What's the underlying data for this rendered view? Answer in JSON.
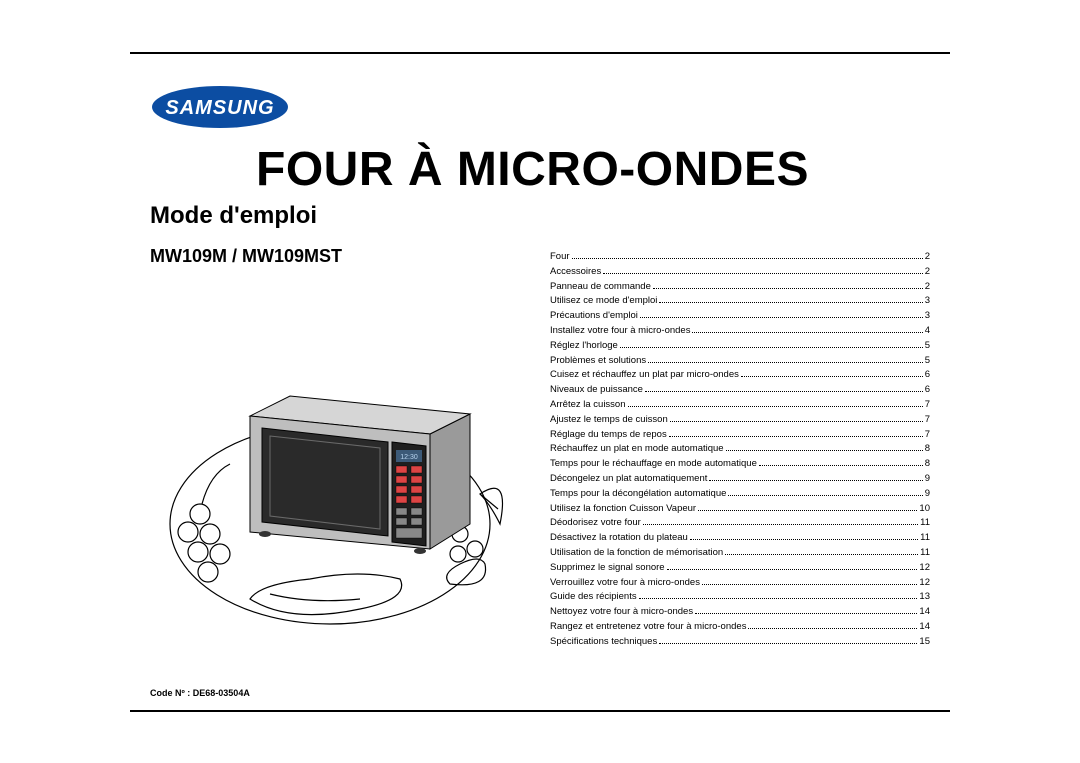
{
  "brand": "SAMSUNG",
  "title": "FOUR À MICRO-ONDES",
  "subtitle": "Mode d'emploi",
  "model": "MW109M / MW109MST",
  "code_label": "Code Nº : DE68-03504A",
  "colors": {
    "page_bg": "#ffffff",
    "text": "#000000",
    "frame": "#000000",
    "logo_ellipse": "#0c4da2",
    "microwave_body": "#bebebe",
    "microwave_dark": "#3a3a3a",
    "microwave_display": "#2a2a2a",
    "illus_line": "#000000"
  },
  "fonts": {
    "title_size": 48,
    "title_weight": 900,
    "subtitle_size": 24,
    "subtitle_weight": 700,
    "model_size": 18,
    "model_weight": 700,
    "toc_size": 9.5,
    "code_size": 9,
    "code_weight": 700
  },
  "toc": [
    {
      "label": "Four",
      "page": "2"
    },
    {
      "label": "Accessoires",
      "page": "2"
    },
    {
      "label": "Panneau de commande",
      "page": "2"
    },
    {
      "label": "Utilisez ce mode d'emploi",
      "page": "3"
    },
    {
      "label": "Précautions d'emploi",
      "page": "3"
    },
    {
      "label": "Installez votre four à micro-ondes",
      "page": "4"
    },
    {
      "label": "Réglez l'horloge",
      "page": "5"
    },
    {
      "label": "Problèmes et solutions",
      "page": "5"
    },
    {
      "label": "Cuisez et réchauffez un plat par micro-ondes",
      "page": "6"
    },
    {
      "label": "Niveaux de puissance",
      "page": "6"
    },
    {
      "label": "Arrêtez la cuisson",
      "page": "7"
    },
    {
      "label": "Ajustez le temps de cuisson",
      "page": "7"
    },
    {
      "label": "Réglage du temps de repos",
      "page": "7"
    },
    {
      "label": "Réchauffez un plat en mode automatique",
      "page": "8"
    },
    {
      "label": "Temps pour le réchauffage en mode automatique",
      "page": "8"
    },
    {
      "label": "Décongelez un plat automatiquement",
      "page": "9"
    },
    {
      "label": "Temps pour la décongélation automatique",
      "page": "9"
    },
    {
      "label": "Utilisez la fonction Cuisson Vapeur",
      "page": "10"
    },
    {
      "label": "Déodorisez votre four",
      "page": "11"
    },
    {
      "label": "Désactivez la rotation du plateau",
      "page": "11"
    },
    {
      "label": "Utilisation de la fonction de mémorisation",
      "page": "11"
    },
    {
      "label": "Supprimez le signal sonore",
      "page": "12"
    },
    {
      "label": "Verrouillez votre four à micro-ondes",
      "page": "12"
    },
    {
      "label": "Guide des récipients",
      "page": "13"
    },
    {
      "label": "Nettoyez votre four à micro-ondes",
      "page": "14"
    },
    {
      "label": "Rangez et entretenez votre four à micro-ondes",
      "page": "14"
    },
    {
      "label": "Spécifications techniques",
      "page": "15"
    }
  ]
}
